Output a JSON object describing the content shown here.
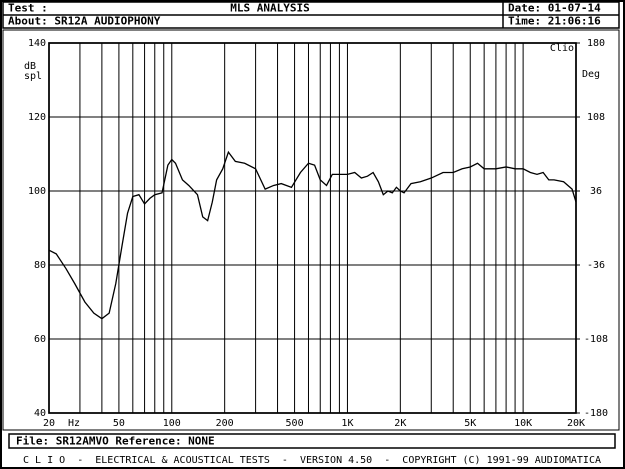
{
  "header": {
    "test_label": "Test :",
    "title": "MLS ANALYSIS",
    "date": "Date: 01-07-14",
    "about": "About: SR12A AUDIOPHONY",
    "time": "Time: 21:06:16"
  },
  "chart_data": {
    "type": "line",
    "x": [
      20,
      22,
      25,
      28,
      32,
      36,
      40,
      44,
      48,
      52,
      56,
      60,
      65,
      70,
      75,
      80,
      88,
      95,
      100,
      105,
      115,
      125,
      140,
      150,
      160,
      170,
      180,
      195,
      210,
      230,
      260,
      300,
      340,
      380,
      420,
      480,
      540,
      600,
      650,
      700,
      760,
      820,
      900,
      1000,
      1100,
      1200,
      1300,
      1400,
      1500,
      1600,
      1700,
      1800,
      1900,
      2000,
      2100,
      2300,
      2600,
      3000,
      3500,
      4000,
      4500,
      5000,
      5500,
      6000,
      7000,
      8000,
      9000,
      10000,
      11000,
      12000,
      13000,
      14000,
      15000,
      17000,
      19000,
      20000
    ],
    "series": [
      {
        "color": "#000000",
        "values": [
          84,
          83,
          79,
          75,
          70,
          67,
          65.5,
          67,
          75,
          85,
          94,
          98.5,
          99,
          96.5,
          98,
          99,
          99.5,
          107,
          108.5,
          107.5,
          103,
          101.5,
          99,
          93,
          92,
          97,
          103,
          106,
          110.5,
          108,
          107.5,
          106,
          100.5,
          101.5,
          102,
          101,
          105,
          107.5,
          107,
          103,
          101.5,
          104.5,
          104.5,
          104.5,
          105,
          103.5,
          104,
          105,
          102.5,
          99,
          100,
          99.5,
          101,
          100,
          99.5,
          102,
          102.5,
          103.5,
          105,
          105,
          106,
          106.5,
          107.5,
          106,
          106,
          106.5,
          106,
          106,
          105,
          104.5,
          105,
          103,
          103,
          102.5,
          100.5,
          97
        ]
      }
    ],
    "xlim": [
      20,
      20000
    ],
    "x_log": true,
    "xticks": [
      20,
      50,
      100,
      200,
      500,
      {
        "value": 1000,
        "label": "1K"
      },
      {
        "value": 2000,
        "label": "2K"
      },
      {
        "value": 5000,
        "label": "5K"
      },
      {
        "value": 10000,
        "label": "10K"
      },
      {
        "value": 20000,
        "label": "20K"
      }
    ],
    "minor_xticks": [
      30,
      40,
      60,
      70,
      80,
      90,
      300,
      400,
      600,
      700,
      800,
      900,
      3000,
      4000,
      6000,
      7000,
      8000,
      9000
    ],
    "x_unit": "Hz",
    "ylim": [
      40,
      140
    ],
    "yticks": [
      40,
      60,
      80,
      100,
      120,
      140
    ],
    "y_label": [
      "dB",
      "spl"
    ],
    "y2lim": [
      -180,
      180
    ],
    "y2ticks": [
      -180,
      -108,
      -36,
      36,
      108,
      180
    ],
    "y2_label": "Deg",
    "brand": "Clio",
    "grid": true
  },
  "footer": {
    "file": "File: SR12AMVO Reference: NONE",
    "status": "C L I O  -  ELECTRICAL & ACOUSTICAL TESTS  -  VERSION 4.50  -  COPYRIGHT (C) 1991-99 AUDIOMATICA"
  }
}
